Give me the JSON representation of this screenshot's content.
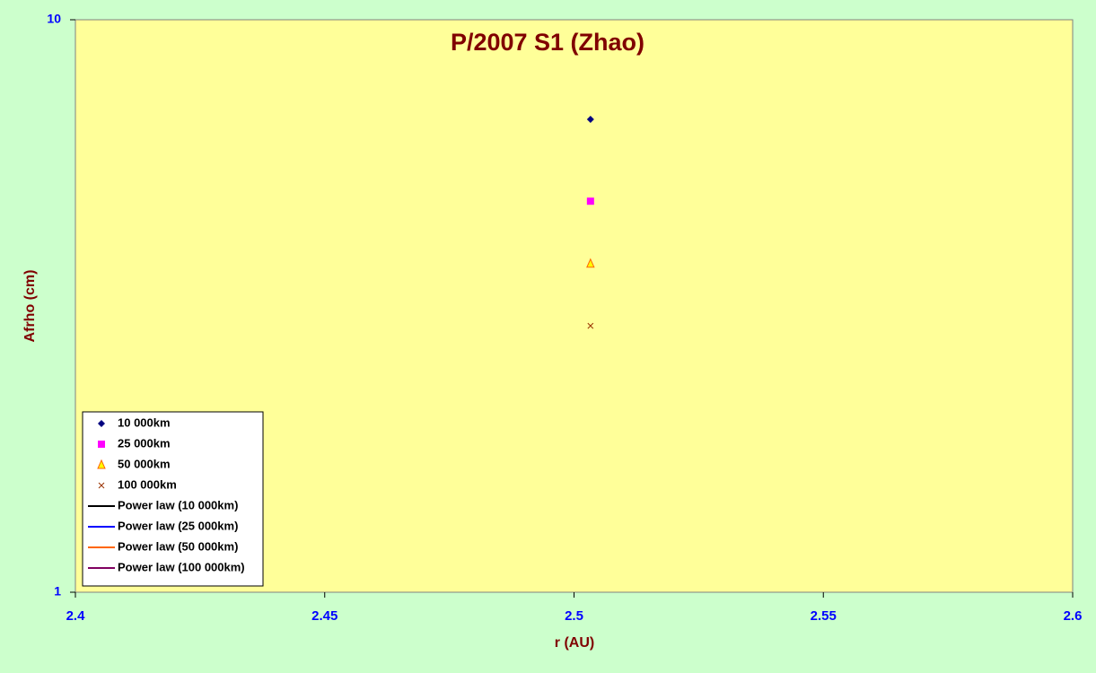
{
  "chart_data": {
    "type": "scatter",
    "title": "P/2007 S1 (Zhao)",
    "x_label": "r (AU)",
    "y_label": "Afrho (cm)",
    "x": [
      2.5033
    ],
    "series": [
      {
        "name": "10 000km",
        "color": "#000080",
        "marker": "diamond",
        "values": [
          6.7
        ]
      },
      {
        "name": "25 000km",
        "color": "#ff00ff",
        "marker": "square",
        "values": [
          4.82
        ]
      },
      {
        "name": "50 000km",
        "color": "#ff6600",
        "marker": "triangle",
        "values": [
          3.75
        ]
      },
      {
        "name": "100 000km",
        "color": "#993300",
        "marker": "cross",
        "values": [
          2.92
        ]
      },
      {
        "name": "Power law (10 000km)",
        "color": "#000000",
        "marker": "line",
        "values": [
          null
        ]
      },
      {
        "name": "Power law (25 000km)",
        "color": "#0000ff",
        "marker": "line",
        "values": [
          null
        ]
      },
      {
        "name": "Power law (50 000km)",
        "color": "#ff6600",
        "marker": "line",
        "values": [
          null
        ]
      },
      {
        "name": "Power law (100 000km)",
        "color": "#800060",
        "marker": "line",
        "values": [
          null
        ]
      }
    ],
    "xlim": [
      2.4,
      2.6
    ],
    "xticks": [
      2.4,
      2.45,
      2.5,
      2.55,
      2.6
    ],
    "ylim": [
      1,
      10
    ],
    "yticks": [
      1,
      10
    ],
    "ylog": true,
    "grid": false,
    "legend": "bottom-left"
  }
}
